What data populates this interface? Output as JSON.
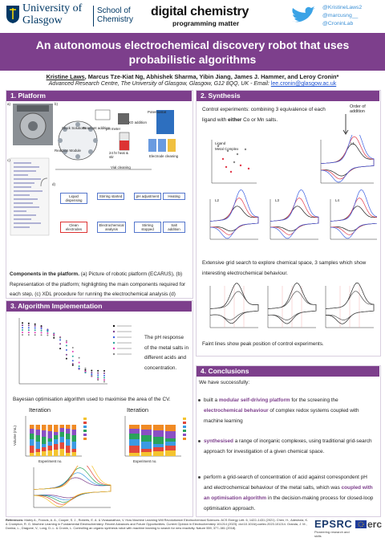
{
  "header": {
    "university": "University of Glasgow",
    "school": "School of Chemistry",
    "brand": "digital chemistry",
    "tagline": "programming matter",
    "handles": [
      "@KristineLaws2",
      "@marcusng__",
      "@CroninLab"
    ]
  },
  "title": "An autonomous electrochemical discovery robot that uses probabilistic algorithms",
  "authors": {
    "first": "Kristine Laws",
    "rest": ", Marcus Tze-Kiat Ng, Abhishek Sharma, Yibin Jiang, James J. Hammer, and Leroy Cronin*",
    "affiliation": "Advanced Research Centre, The University of Glasgow, Glasgow, G12 8QQ, UK - Email: ",
    "email": "lee.cronin@glasgow.ac.uk"
  },
  "platform": {
    "heading": "1. Platform",
    "panels": [
      "a)",
      "b)",
      "c)",
      "d)"
    ],
    "schematic": [
      "Stock Solutions",
      "Reactant addition",
      "pH meter",
      "Potentiostat",
      "XO addition",
      "24 hr heat & stir",
      "Reaction Module",
      "Vial cleaning",
      "Electrode cleaning"
    ],
    "flow": [
      "Liquid dispensing",
      "Stirring started",
      "pH adjustment",
      "Heating",
      "Clean electrodes",
      "Electrochemical analysis",
      "Stirring stopped",
      "Salt addition"
    ],
    "caption_bold": "Components in the platform.",
    "caption": " (a) Picture of robotic platform (ECARUS), (b) Representation of the platform; highlighting the main components required for each step, (c) XDL procedure for running the electrochemical analysis (d) general synthesis protocol used."
  },
  "synthesis": {
    "heading": "2. Synthesis",
    "intro": [
      "Control experiments: combining 3 equivalence of each ligand with ",
      "either",
      " Co or Mn salts."
    ],
    "order": "Order of addition",
    "legend": [
      "Ligand",
      "Metal Complex"
    ],
    "cv_titles": [
      "L1",
      "L2",
      "L3",
      "L4"
    ],
    "grid_text": "Extensive grid search to explore chemical space, 3 samples which show interesting electrochemical behaviour.",
    "faint_text": "Faint lines show peak position of control experiments."
  },
  "algorithm": {
    "heading": "3. Algorithm Implementation",
    "ph_text": "The pH response of the metal salts in different acids and concentration.",
    "bayes_text": "Bayesian optimisation algorithm used to maximise the area of the CV.",
    "iterations": [
      "Iteration",
      "Iteration"
    ],
    "xlabel": "Experiment no.",
    "ylabel": "Volume (mL)"
  },
  "conclusions": {
    "heading": "4. Conclusions",
    "intro": "We have successfully:",
    "bullets": [
      [
        "built a ",
        "modular self-driving platform",
        " for the screening the ",
        "electrochemical behaviour",
        " of complex redox systems coupled with machine learning"
      ],
      [
        "synthesised",
        " a range of inorganic complexes, using traditional grid-search approach for investigation of a given chemical space."
      ],
      [
        "perform a grid-search of  concentration of acid against correspondent pH and electrochemical behaviour of the metal salts, which was ",
        "coupled with an optimisation algorithm",
        " in the decision-making process for closed-loop optimisation approach."
      ]
    ]
  },
  "references": {
    "label": "References:",
    "text": " Mabry A., Francis, A. A., Cooper, S. J., Roberts, E. A. & Vivasanathan, V. How Machine Learning Will Revolutionize Electrochemical Sciences. ACS Energy Lett. 6, 1422–1431 (2021). Chen, H., Adeshola, K. & Crompton, R. G. Machine Learning in Fundamental Electrochemistry: Recent Advances and Future Opportunities. Current Opinion in Electrochemistry 101214 (2023). doi:10.1016/j.coelec.2023.101214. Granda, J. M., Donina, L., Dragone, V., Long, D.-L. & Cronin, L. Controlling an organic synthesis robot with machine learning to search for new reactivity. Nature 559, 377–381 (2018)."
  },
  "funders": {
    "epsrc": "EPSRC",
    "epsrc_sub": "Pioneering research and skills",
    "erc": "erc"
  }
}
